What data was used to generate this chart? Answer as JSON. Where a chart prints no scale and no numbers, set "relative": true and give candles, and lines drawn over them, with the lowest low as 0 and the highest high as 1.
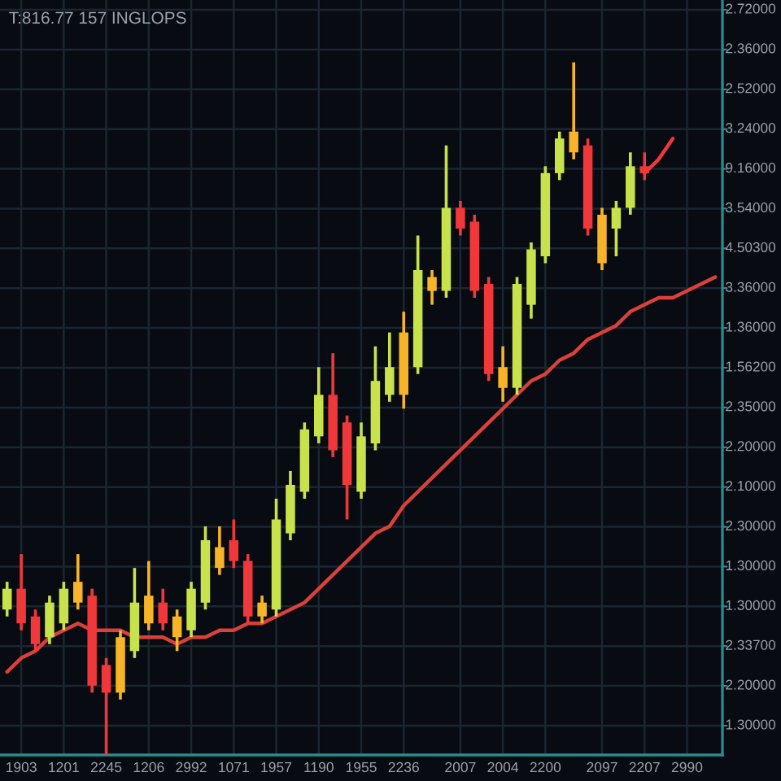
{
  "chart_data": {
    "type": "candlestick",
    "title": "T:816.77 157 INGLOPS",
    "relative": true,
    "categories": [
      null,
      "1903",
      null,
      null,
      "1201",
      null,
      null,
      "2245",
      null,
      null,
      "1206",
      null,
      null,
      "2992",
      null,
      null,
      "1071",
      null,
      null,
      "1957",
      null,
      null,
      "1190",
      null,
      null,
      "1955",
      null,
      null,
      "2236",
      null,
      null,
      null,
      "2007",
      null,
      null,
      "2004",
      null,
      null,
      "2200",
      null,
      null,
      null,
      "2097",
      null,
      null,
      "2207",
      null,
      null,
      "2990",
      null,
      null
    ],
    "ohlc": [
      [
        0.21,
        0.25,
        0.2,
        0.24
      ],
      [
        0.24,
        0.29,
        0.18,
        0.19
      ],
      [
        0.2,
        0.21,
        0.15,
        0.16
      ],
      [
        0.17,
        0.23,
        0.16,
        0.22
      ],
      [
        0.19,
        0.25,
        0.18,
        0.24
      ],
      [
        0.22,
        0.29,
        0.21,
        0.25
      ],
      [
        0.23,
        0.24,
        0.09,
        0.1
      ],
      [
        0.13,
        0.14,
        0.0,
        0.09
      ],
      [
        0.09,
        0.18,
        0.08,
        0.17
      ],
      [
        0.15,
        0.27,
        0.14,
        0.22
      ],
      [
        0.19,
        0.28,
        0.18,
        0.23
      ],
      [
        0.22,
        0.24,
        0.18,
        0.19
      ],
      [
        0.17,
        0.21,
        0.15,
        0.2
      ],
      [
        0.18,
        0.25,
        0.17,
        0.24
      ],
      [
        0.22,
        0.33,
        0.21,
        0.31
      ],
      [
        0.27,
        0.33,
        0.26,
        0.3
      ],
      [
        0.31,
        0.34,
        0.27,
        0.28
      ],
      [
        0.28,
        0.29,
        0.19,
        0.2
      ],
      [
        0.2,
        0.23,
        0.19,
        0.22
      ],
      [
        0.21,
        0.37,
        0.2,
        0.34
      ],
      [
        0.32,
        0.41,
        0.31,
        0.39
      ],
      [
        0.38,
        0.48,
        0.37,
        0.47
      ],
      [
        0.46,
        0.56,
        0.45,
        0.52
      ],
      [
        0.52,
        0.58,
        0.43,
        0.44
      ],
      [
        0.48,
        0.49,
        0.34,
        0.39
      ],
      [
        0.38,
        0.48,
        0.37,
        0.46
      ],
      [
        0.45,
        0.59,
        0.44,
        0.54
      ],
      [
        0.52,
        0.61,
        0.51,
        0.56
      ],
      [
        0.52,
        0.64,
        0.5,
        0.61
      ],
      [
        0.56,
        0.75,
        0.55,
        0.7
      ],
      [
        0.67,
        0.7,
        0.65,
        0.69
      ],
      [
        0.67,
        0.88,
        0.66,
        0.79
      ],
      [
        0.79,
        0.8,
        0.75,
        0.76
      ],
      [
        0.77,
        0.78,
        0.66,
        0.67
      ],
      [
        0.68,
        0.69,
        0.54,
        0.55
      ],
      [
        0.53,
        0.59,
        0.51,
        0.56
      ],
      [
        0.53,
        0.69,
        0.52,
        0.68
      ],
      [
        0.65,
        0.74,
        0.63,
        0.73
      ],
      [
        0.72,
        0.85,
        0.71,
        0.84
      ],
      [
        0.84,
        0.9,
        0.83,
        0.89
      ],
      [
        0.87,
        1.0,
        0.86,
        0.9
      ],
      [
        0.88,
        0.89,
        0.75,
        0.76
      ],
      [
        0.71,
        0.79,
        0.7,
        0.78
      ],
      [
        0.76,
        0.8,
        0.72,
        0.79
      ],
      [
        0.79,
        0.87,
        0.78,
        0.85
      ],
      [
        0.85,
        0.87,
        0.83,
        0.84
      ],
      null,
      null,
      null,
      null,
      null
    ],
    "colors": [
      "#c8e24c",
      "#f0383a",
      "#f0383a",
      "#c8e24c",
      "#c8e24c",
      "#f7b428",
      "#f0383a",
      "#f0383a",
      "#f7b428",
      "#c8e24c",
      "#f7b428",
      "#f0383a",
      "#f7b428",
      "#c8e24c",
      "#c8e24c",
      "#f7b428",
      "#f0383a",
      "#f0383a",
      "#f7b428",
      "#c8e24c",
      "#c8e24c",
      "#c8e24c",
      "#c8e24c",
      "#f0383a",
      "#f0383a",
      "#c8e24c",
      "#c8e24c",
      "#c8e24c",
      "#f7b428",
      "#c8e24c",
      "#f7b428",
      "#c8e24c",
      "#f0383a",
      "#f0383a",
      "#f0383a",
      "#f7b428",
      "#c8e24c",
      "#c8e24c",
      "#c8e24c",
      "#c8e24c",
      "#f7b428",
      "#f0383a",
      "#f7b428",
      "#c8e24c",
      "#c8e24c",
      "#f0383a",
      null,
      null,
      null,
      null,
      null
    ],
    "series": [
      {
        "type": "line",
        "color": "#d9413a",
        "values": [
          0.12,
          0.14,
          0.15,
          0.17,
          0.18,
          0.19,
          0.18,
          0.18,
          0.18,
          0.17,
          0.17,
          0.17,
          0.16,
          0.17,
          0.17,
          0.18,
          0.18,
          0.19,
          0.19,
          0.2,
          0.21,
          0.22,
          0.24,
          0.26,
          0.28,
          0.3,
          0.32,
          0.33,
          0.36,
          0.38,
          0.4,
          0.42,
          0.44,
          0.46,
          0.48,
          0.5,
          0.52,
          0.54,
          0.55,
          0.57,
          0.58,
          0.6,
          0.61,
          0.62,
          0.64,
          0.65,
          0.66,
          0.66,
          0.67,
          0.68,
          0.69
        ]
      },
      {
        "type": "line",
        "color": "#f0383a",
        "values": [
          null,
          null,
          null,
          null,
          null,
          null,
          null,
          null,
          null,
          null,
          null,
          null,
          null,
          null,
          null,
          null,
          null,
          null,
          null,
          null,
          null,
          null,
          null,
          null,
          null,
          null,
          null,
          null,
          null,
          null,
          null,
          null,
          null,
          null,
          null,
          null,
          null,
          null,
          null,
          null,
          null,
          null,
          null,
          null,
          null,
          0.84,
          0.86,
          0.89,
          null,
          null,
          null
        ]
      }
    ],
    "annotations": [
      "2.72000",
      "2.36000",
      "2.52000",
      "3.24000",
      "9.16000",
      "3.54000",
      "4.50300",
      "3.36000",
      "1.36000",
      "1.56200",
      "2.35000",
      "2.20000",
      "2.10000",
      "2.30000",
      "1.30000",
      "1.30000",
      "2.33700",
      "2.20000",
      "1.30000"
    ],
    "grid": true
  }
}
